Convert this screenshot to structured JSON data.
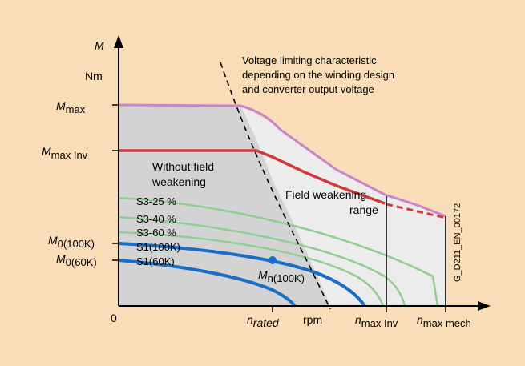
{
  "chart_data": {
    "type": "line",
    "y_axis": {
      "symbol": "M",
      "unit": "Nm"
    },
    "x_axis": {
      "unit": "rpm",
      "origin_label": "0"
    },
    "y_ticks": {
      "m_max": {
        "main": "M",
        "sub": "max"
      },
      "m_max_inv": {
        "main": "M",
        "sub": "max Inv"
      },
      "m0_100k": {
        "main": "M",
        "sub": "0(100K)"
      },
      "m0_60k": {
        "main": "M",
        "sub": "0(60K)"
      }
    },
    "x_ticks": {
      "n_rated": {
        "main": "n",
        "sub": "rated"
      },
      "n_max_inv": {
        "main": "n",
        "sub": "max Inv"
      },
      "n_max_mech": {
        "main": "n",
        "sub": "max mech"
      }
    },
    "annotations": {
      "voltage_line1": "Voltage limiting characteristic",
      "voltage_line2": "depending on the winding design",
      "voltage_line3": "and converter output voltage",
      "without_fw_1": "Without field",
      "without_fw_2": "weakening",
      "fw_1": "Field weakening",
      "fw_2": "range",
      "rated_point_main": "M",
      "rated_point_sub": "n(100K)",
      "figure_id": "G_D211_EN_00172"
    },
    "series": [
      {
        "name": "S3-25 %",
        "color": "#8fcf8f",
        "x": [
          0,
          1,
          2,
          3,
          4,
          5,
          6,
          7,
          8,
          8.6,
          8.6
        ],
        "y": [
          0.88,
          0.83,
          0.78,
          0.72,
          0.65,
          0.57,
          0.48,
          0.37,
          0.22,
          0.08,
          0
        ]
      },
      {
        "name": "S3-40 %",
        "color": "#8fcf8f",
        "x": [
          0,
          1,
          2,
          3,
          4,
          5,
          6,
          7,
          7.8,
          8.2
        ],
        "y": [
          0.77,
          0.73,
          0.69,
          0.63,
          0.56,
          0.48,
          0.38,
          0.24,
          0.1,
          0
        ]
      },
      {
        "name": "S3-60 %",
        "color": "#8fcf8f",
        "x": [
          0,
          1,
          2,
          3,
          4,
          5,
          6,
          6.8,
          7.4
        ],
        "y": [
          0.68,
          0.65,
          0.61,
          0.56,
          0.5,
          0.42,
          0.31,
          0.17,
          0
        ]
      },
      {
        "name": "S1(100K)",
        "color": "#1a6fc4",
        "x": [
          0,
          1,
          2,
          3,
          4,
          5,
          5.8,
          6.3
        ],
        "y": [
          0.62,
          0.59,
          0.55,
          0.5,
          0.44,
          0.34,
          0.18,
          0
        ]
      },
      {
        "name": "S1(60K)",
        "color": "#1a6fc4",
        "x": [
          0,
          1,
          2,
          3,
          4,
          4.8,
          5.3
        ],
        "y": [
          0.5,
          0.47,
          0.42,
          0.35,
          0.25,
          0.12,
          0
        ]
      }
    ],
    "limits": {
      "m_max_curve_color": "#c985c9",
      "m_max_inv_curve_color": "#d23a3a",
      "voltage_limit_color": "#000000",
      "rated_point_color": "#1a6fc4"
    }
  }
}
